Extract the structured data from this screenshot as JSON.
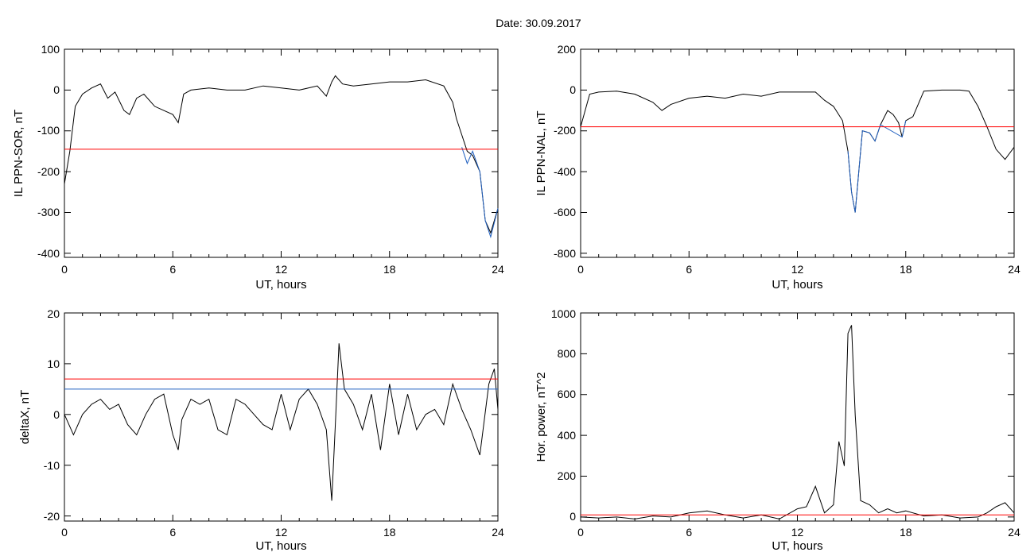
{
  "page_title": "Date:  30.09.2017",
  "chart_data": [
    {
      "type": "line",
      "xlabel": "UT, hours",
      "ylabel": "IL PPN-SOR, nT",
      "xlim": [
        0,
        24
      ],
      "ylim": [
        -410,
        100
      ],
      "xticks": [
        "0",
        "6",
        "12",
        "18",
        "24"
      ],
      "yticks": [
        "100",
        "0",
        "-100",
        "-200",
        "-300",
        "-400"
      ],
      "series": [
        {
          "color": "#000000",
          "x": [
            0,
            0.3,
            0.6,
            1,
            1.5,
            2,
            2.4,
            2.8,
            3.3,
            3.6,
            4,
            4.4,
            5,
            5.5,
            6,
            6.3,
            6.6,
            7,
            8,
            9,
            10,
            11,
            12,
            13,
            14,
            14.5,
            14.8,
            15,
            15.4,
            16,
            17,
            18,
            19,
            20,
            21,
            21.5,
            21.7,
            22,
            22.3,
            22.6,
            23,
            23.3,
            23.6,
            24
          ],
          "y": [
            -230,
            -150,
            -40,
            -10,
            5,
            15,
            -20,
            -5,
            -50,
            -60,
            -20,
            -10,
            -40,
            -50,
            -60,
            -80,
            -10,
            0,
            5,
            0,
            0,
            10,
            5,
            0,
            10,
            -15,
            20,
            35,
            15,
            10,
            15,
            20,
            20,
            25,
            10,
            -30,
            -70,
            -110,
            -150,
            -160,
            -200,
            -320,
            -350,
            -290
          ]
        },
        {
          "color": "#2060c0",
          "x": [
            22,
            22.3,
            22.6,
            23,
            23.3,
            23.6,
            24
          ],
          "y": [
            -140,
            -180,
            -150,
            -200,
            -320,
            -360,
            -290
          ]
        },
        {
          "color": "#ff0000",
          "x": [
            0,
            24
          ],
          "y": [
            -145,
            -145
          ]
        }
      ]
    },
    {
      "type": "line",
      "xlabel": "UT, hours",
      "ylabel": "IL PPN-NAL, nT",
      "xlim": [
        0,
        24
      ],
      "ylim": [
        -820,
        200
      ],
      "xticks": [
        "0",
        "6",
        "12",
        "18",
        "24"
      ],
      "yticks": [
        "200",
        "0",
        "-200",
        "-400",
        "-600",
        "-800"
      ],
      "series": [
        {
          "color": "#000000",
          "x": [
            0,
            0.5,
            1,
            2,
            3,
            4,
            4.5,
            5,
            6,
            7,
            8,
            9,
            10,
            11,
            12,
            13,
            13.5,
            14,
            14.5,
            14.8,
            15,
            15.2,
            15.4,
            15.6,
            16,
            16.3,
            16.6,
            17,
            17.3,
            17.6,
            17.8,
            18,
            18.4,
            19,
            20,
            21,
            21.5,
            22,
            22.5,
            23,
            23.5,
            24
          ],
          "y": [
            -180,
            -20,
            -10,
            -5,
            -20,
            -60,
            -100,
            -70,
            -40,
            -30,
            -40,
            -20,
            -30,
            -10,
            -10,
            -10,
            -50,
            -80,
            -150,
            -300,
            -500,
            -600,
            -400,
            -200,
            -210,
            -250,
            -170,
            -100,
            -120,
            -160,
            -230,
            -150,
            -130,
            -5,
            0,
            0,
            -5,
            -80,
            -180,
            -290,
            -340,
            -280
          ]
        },
        {
          "color": "#2060c0",
          "x": [
            14.8,
            15,
            15.2,
            15.4,
            15.6,
            16,
            16.3,
            16.6,
            17.8,
            18
          ],
          "y": [
            -300,
            -500,
            -600,
            -400,
            -200,
            -210,
            -250,
            -170,
            -230,
            -150
          ]
        },
        {
          "color": "#ff0000",
          "x": [
            0,
            24
          ],
          "y": [
            -180,
            -180
          ]
        }
      ]
    },
    {
      "type": "line",
      "xlabel": "UT, hours",
      "ylabel": "deltaX, nT",
      "xlim": [
        0,
        24
      ],
      "ylim": [
        -21,
        20
      ],
      "xticks": [
        "0",
        "6",
        "12",
        "18",
        "24"
      ],
      "yticks": [
        "20",
        "10",
        "0",
        "-10",
        "-20"
      ],
      "series": [
        {
          "color": "#000000",
          "x": [
            0,
            0.5,
            1,
            1.5,
            2,
            2.5,
            3,
            3.5,
            4,
            4.5,
            5,
            5.5,
            6,
            6.3,
            6.5,
            7,
            7.5,
            8,
            8.5,
            9,
            9.5,
            10,
            10.5,
            11,
            11.5,
            12,
            12.5,
            13,
            13.5,
            14,
            14.5,
            14.8,
            15,
            15.2,
            15.5,
            16,
            16.5,
            17,
            17.5,
            18,
            18.5,
            19,
            19.5,
            20,
            20.5,
            21,
            21.5,
            22,
            22.5,
            23,
            23.5,
            23.8,
            24
          ],
          "y": [
            0,
            -4,
            0,
            2,
            3,
            1,
            2,
            -2,
            -4,
            0,
            3,
            4,
            -4,
            -7,
            -1,
            3,
            2,
            3,
            -3,
            -4,
            3,
            2,
            0,
            -2,
            -3,
            4,
            -3,
            3,
            5,
            2,
            -3,
            -17,
            -2,
            14,
            5,
            2,
            -3,
            4,
            -7,
            6,
            -4,
            4,
            -3,
            0,
            1,
            -2,
            6,
            1,
            -3,
            -8,
            6,
            9,
            1
          ]
        },
        {
          "color": "#ff0000",
          "x": [
            0,
            24
          ],
          "y": [
            7,
            7
          ]
        },
        {
          "color": "#2060c0",
          "x": [
            0,
            24
          ],
          "y": [
            5,
            5
          ]
        }
      ]
    },
    {
      "type": "line",
      "xlabel": "UT, hours",
      "ylabel": "Hor. power, nT^2",
      "xlim": [
        0,
        24
      ],
      "ylim": [
        -20,
        1000
      ],
      "xticks": [
        "0",
        "6",
        "12",
        "18",
        "24"
      ],
      "yticks": [
        "1000",
        "800",
        "600",
        "400",
        "200",
        "0"
      ],
      "series": [
        {
          "color": "#000000",
          "x": [
            0,
            1,
            2,
            3,
            4,
            5,
            6,
            7,
            8,
            9,
            10,
            11,
            12,
            12.5,
            13,
            13.5,
            14,
            14.3,
            14.6,
            14.8,
            15,
            15.2,
            15.5,
            16,
            16.5,
            17,
            17.5,
            18,
            19,
            20,
            21,
            22,
            22.5,
            23,
            23.5,
            24
          ],
          "y": [
            0,
            -5,
            0,
            -10,
            5,
            0,
            20,
            30,
            10,
            -5,
            10,
            -10,
            40,
            50,
            150,
            20,
            60,
            370,
            250,
            900,
            940,
            500,
            80,
            60,
            20,
            40,
            20,
            30,
            5,
            10,
            -5,
            0,
            20,
            50,
            70,
            20
          ]
        },
        {
          "color": "#ff0000",
          "x": [
            0,
            24
          ],
          "y": [
            10,
            10
          ]
        }
      ]
    }
  ]
}
